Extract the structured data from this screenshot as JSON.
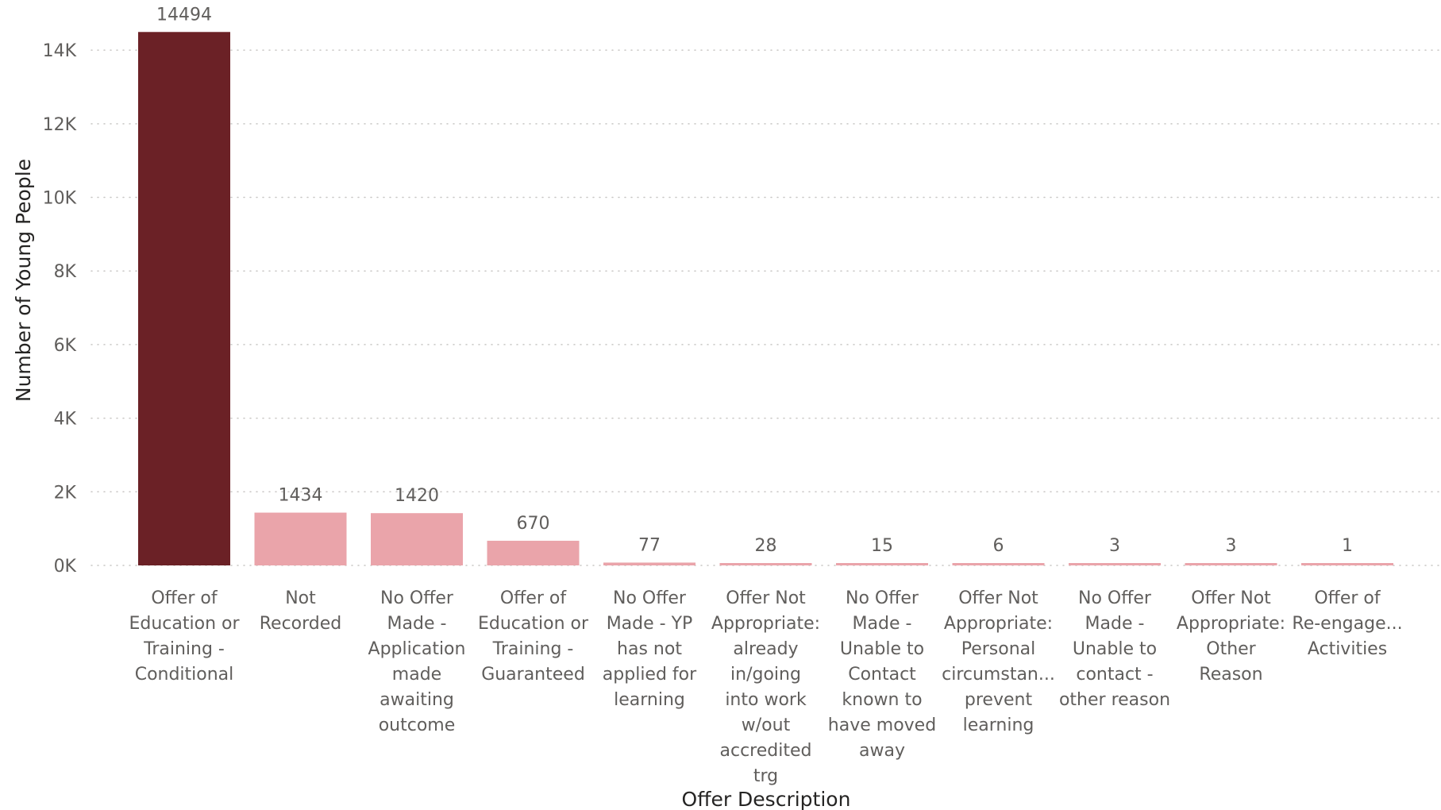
{
  "chart_data": {
    "type": "bar",
    "xlabel": "Offer Description",
    "ylabel": "Number of Young People",
    "ylim": [
      0,
      14500
    ],
    "y_ticks": [
      {
        "value": 0,
        "label": "0K"
      },
      {
        "value": 2000,
        "label": "2K"
      },
      {
        "value": 4000,
        "label": "4K"
      },
      {
        "value": 6000,
        "label": "6K"
      },
      {
        "value": 8000,
        "label": "8K"
      },
      {
        "value": 10000,
        "label": "10K"
      },
      {
        "value": 12000,
        "label": "12K"
      },
      {
        "value": 14000,
        "label": "14K"
      }
    ],
    "grid": true,
    "categories": [
      {
        "lines": [
          "Offer of",
          "Education or",
          "Training -",
          "Conditional"
        ],
        "value": 14494,
        "label": "14494",
        "highlight": true
      },
      {
        "lines": [
          "Not",
          "Recorded"
        ],
        "value": 1434,
        "label": "1434",
        "highlight": false
      },
      {
        "lines": [
          "No Offer",
          "Made -",
          "Application",
          "made",
          "awaiting",
          "outcome"
        ],
        "value": 1420,
        "label": "1420",
        "highlight": false
      },
      {
        "lines": [
          "Offer of",
          "Education or",
          "Training -",
          "Guaranteed"
        ],
        "value": 670,
        "label": "670",
        "highlight": false
      },
      {
        "lines": [
          "No Offer",
          "Made - YP",
          "has not",
          "applied for",
          "learning"
        ],
        "value": 77,
        "label": "77",
        "highlight": false
      },
      {
        "lines": [
          "Offer Not",
          "Appropriate:",
          "already",
          "in/going",
          "into work",
          "w/out",
          "accredited",
          "trg"
        ],
        "value": 28,
        "label": "28",
        "highlight": false
      },
      {
        "lines": [
          "No Offer",
          "Made -",
          "Unable to",
          "Contact",
          "known to",
          "have moved",
          "away"
        ],
        "value": 15,
        "label": "15",
        "highlight": false
      },
      {
        "lines": [
          "Offer Not",
          "Appropriate:",
          "Personal",
          "circumstan...",
          "prevent",
          "learning"
        ],
        "value": 6,
        "label": "6",
        "highlight": false
      },
      {
        "lines": [
          "No Offer",
          "Made -",
          "Unable to",
          "contact -",
          "other reason"
        ],
        "value": 3,
        "label": "3",
        "highlight": false
      },
      {
        "lines": [
          "Offer Not",
          "Appropriate:",
          "Other",
          "Reason"
        ],
        "value": 3,
        "label": "3",
        "highlight": false
      },
      {
        "lines": [
          "Offer of",
          "Re-engage...",
          "Activities"
        ],
        "value": 1,
        "label": "1",
        "highlight": false
      }
    ],
    "colors": {
      "highlight": "#6b2126",
      "default": "#eaa4aa",
      "grid": "#c8c6c4"
    }
  }
}
